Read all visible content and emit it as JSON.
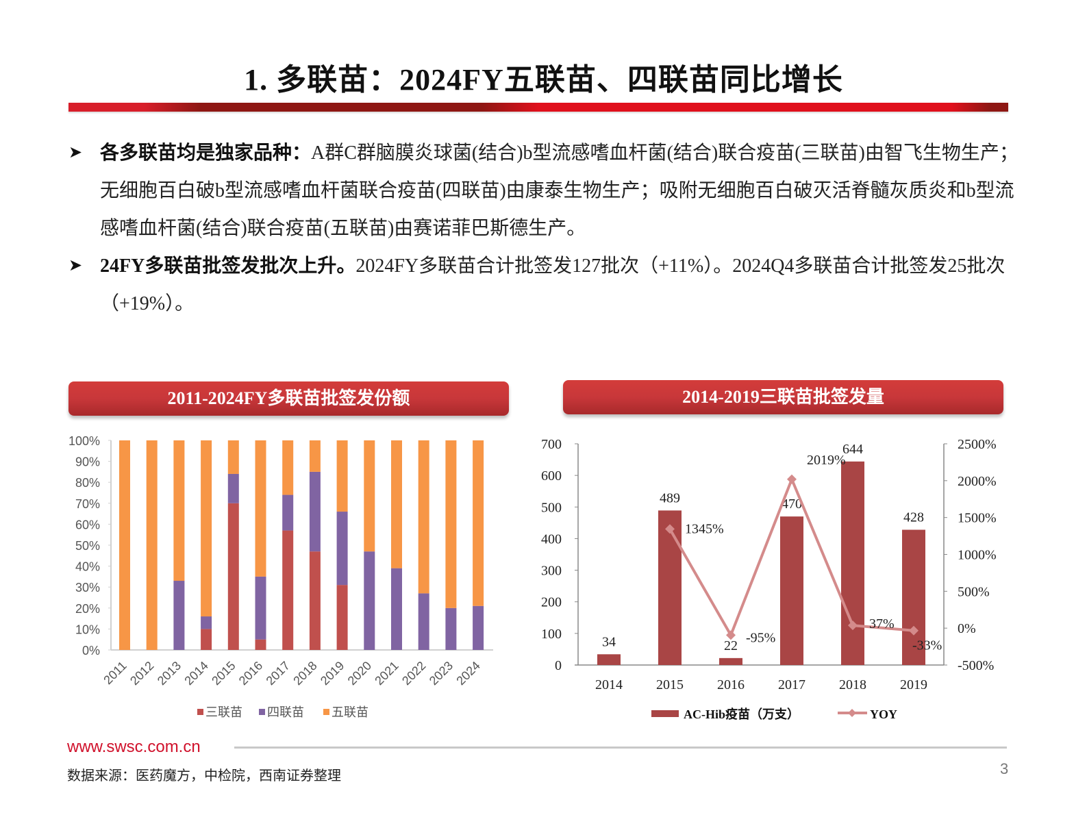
{
  "slide": {
    "title": "1. 多联苗：2024FY五联苗、四联苗同比增长",
    "page_number": "3"
  },
  "bullets": [
    {
      "bold": "各多联苗均是独家品种：",
      "text": "A群C群脑膜炎球菌(结合)b型流感嗜血杆菌(结合)联合疫苗(三联苗)由智飞生物生产；无细胞百白破b型流感嗜血杆菌联合疫苗(四联苗)由康泰生物生产；吸附无细胞百白破灭活脊髓灰质炎和b型流感嗜血杆菌(结合)联合疫苗(五联苗)由赛诺菲巴斯德生产。"
    },
    {
      "bold": "24FY多联苗批签发批次上升。",
      "text": "2024FY多联苗合计批签发127批次（+11%）。2024Q4多联苗合计批签发25批次（+19%）。"
    }
  ],
  "panels": {
    "left_title": "2011-2024FY多联苗批签发份额",
    "right_title": "2014-2019三联苗批签发量"
  },
  "footer": {
    "url": "www.swsc.com.cn",
    "source": "数据来源：医药魔方，中检院，西南证券整理"
  },
  "colors": {
    "san": "#c0504d",
    "si": "#8064a2",
    "wu": "#f79646",
    "bar": "#a94545",
    "yoy": "#d48b8b",
    "brand_red": "#d0112b"
  },
  "chart_data": [
    {
      "type": "bar",
      "stacked": true,
      "title": "2011-2024FY多联苗批签发份额",
      "categories": [
        "2011",
        "2012",
        "2013",
        "2014",
        "2015",
        "2016",
        "2017",
        "2018",
        "2019",
        "2020",
        "2021",
        "2022",
        "2023",
        "2024"
      ],
      "series": [
        {
          "name": "三联苗",
          "values": [
            0,
            0,
            0,
            10,
            70,
            5,
            57,
            47,
            31,
            0,
            0,
            0,
            0,
            0
          ]
        },
        {
          "name": "四联苗",
          "values": [
            0,
            0,
            33,
            6,
            14,
            30,
            17,
            38,
            35,
            47,
            39,
            27,
            20,
            21
          ]
        },
        {
          "name": "五联苗",
          "values": [
            100,
            100,
            67,
            84,
            16,
            65,
            26,
            15,
            34,
            53,
            61,
            73,
            80,
            79
          ]
        }
      ],
      "yticks": [
        "0%",
        "10%",
        "20%",
        "30%",
        "40%",
        "50%",
        "60%",
        "70%",
        "80%",
        "90%",
        "100%"
      ],
      "ylim": [
        0,
        100
      ],
      "xlabel": "",
      "ylabel": "",
      "legend_position": "bottom",
      "grid": false
    },
    {
      "type": "bar+line",
      "title": "2014-2019三联苗批签发量",
      "categories": [
        "2014",
        "2015",
        "2016",
        "2017",
        "2018",
        "2019"
      ],
      "series": [
        {
          "name": "AC-Hib疫苗（万支）",
          "type": "bar",
          "axis": "left",
          "values": [
            34,
            489,
            22,
            470,
            644,
            428
          ]
        },
        {
          "name": "YOY",
          "type": "line",
          "axis": "right",
          "values": [
            null,
            1345,
            -95,
            2019,
            37,
            -33
          ],
          "labels": [
            "",
            "1345%",
            "-95%",
            "2019%",
            "37%",
            "-33%"
          ]
        }
      ],
      "yticks_left": [
        "0",
        "100",
        "200",
        "300",
        "400",
        "500",
        "600",
        "700"
      ],
      "ylim_left": [
        0,
        700
      ],
      "yticks_right": [
        "-500%",
        "0%",
        "500%",
        "1000%",
        "1500%",
        "2000%",
        "2500%"
      ],
      "ylim_right": [
        -500,
        2500
      ],
      "legend_position": "bottom",
      "grid": false
    }
  ]
}
